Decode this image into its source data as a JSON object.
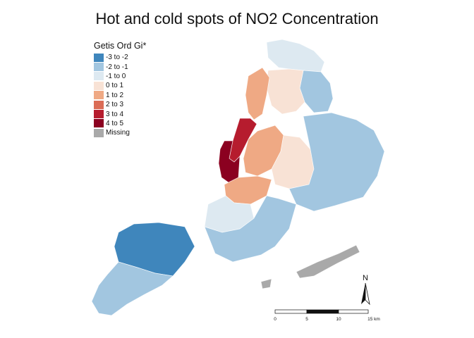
{
  "title": "Hot and cold spots of NO2 Concentration",
  "legend": {
    "title": "Getis Ord Gi*",
    "items": [
      {
        "label": "-3 to -2",
        "color": "#3f86bc"
      },
      {
        "label": "-2 to -1",
        "color": "#a2c6e0"
      },
      {
        "label": "-1 to 0",
        "color": "#dde9f1"
      },
      {
        "label": "0 to 1",
        "color": "#f8e2d5"
      },
      {
        "label": "1 to 2",
        "color": "#efa984"
      },
      {
        "label": "2 to 3",
        "color": "#db6c56"
      },
      {
        "label": "3 to 4",
        "color": "#b61c2e"
      },
      {
        "label": "4 to 5",
        "color": "#8b0020"
      },
      {
        "label": "Missing",
        "color": "#a9a9a9"
      }
    ]
  },
  "north_arrow": {
    "label": "N"
  },
  "scale_bar": {
    "ticks": [
      "0",
      "5",
      "10",
      "15 km"
    ]
  }
}
